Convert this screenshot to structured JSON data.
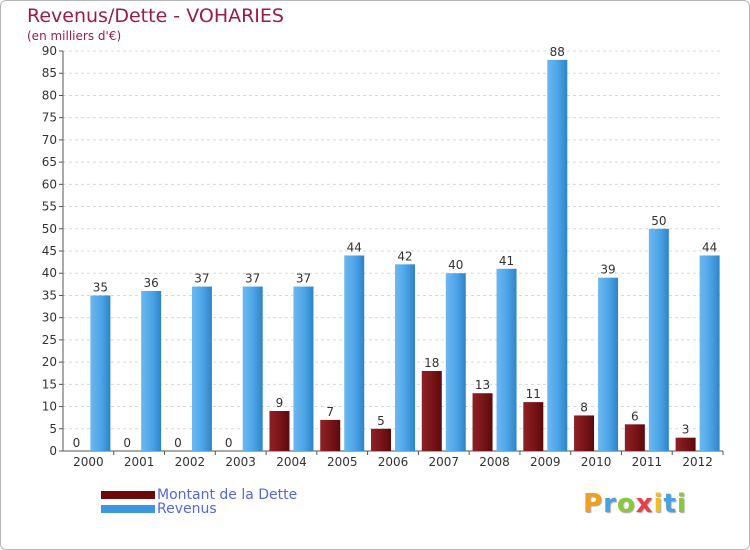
{
  "header": {
    "title": "Revenus/Dette - VOHARIES",
    "subtitle": "(en milliers d'€)"
  },
  "chart_data": {
    "type": "bar",
    "title": "Revenus/Dette - VOHARIES",
    "ylabel": "(en milliers d'€)",
    "xlabel": "",
    "ylim": [
      0,
      90
    ],
    "yticks": [
      0,
      5,
      10,
      15,
      20,
      25,
      30,
      35,
      40,
      45,
      50,
      55,
      60,
      65,
      70,
      75,
      80,
      85,
      90
    ],
    "grid": true,
    "categories": [
      "2000",
      "2001",
      "2002",
      "2003",
      "2004",
      "2005",
      "2006",
      "2007",
      "2008",
      "2009",
      "2010",
      "2011",
      "2012"
    ],
    "series": [
      {
        "name": "Montant de la Dette",
        "color": "#7a0f12",
        "values": [
          0,
          0,
          0,
          0,
          9,
          7,
          5,
          18,
          13,
          11,
          8,
          6,
          3
        ]
      },
      {
        "name": "Revenus",
        "color": "#3a97e0",
        "values": [
          35,
          36,
          37,
          37,
          37,
          44,
          42,
          40,
          41,
          88,
          39,
          50,
          44
        ]
      }
    ]
  },
  "legend": {
    "items": [
      {
        "label": "Montant de la Dette",
        "color": "#6b0a0a"
      },
      {
        "label": "Revenus",
        "color": "#3a97e0"
      }
    ]
  },
  "logo": {
    "letters": [
      "P",
      "r",
      "o",
      "x",
      "i",
      "t",
      "i"
    ],
    "colors": [
      "#f0a020",
      "#4aa0e0",
      "#8cc63f",
      "#e8404a",
      "#f0c020",
      "#4aa0e0",
      "#8cc63f"
    ]
  }
}
